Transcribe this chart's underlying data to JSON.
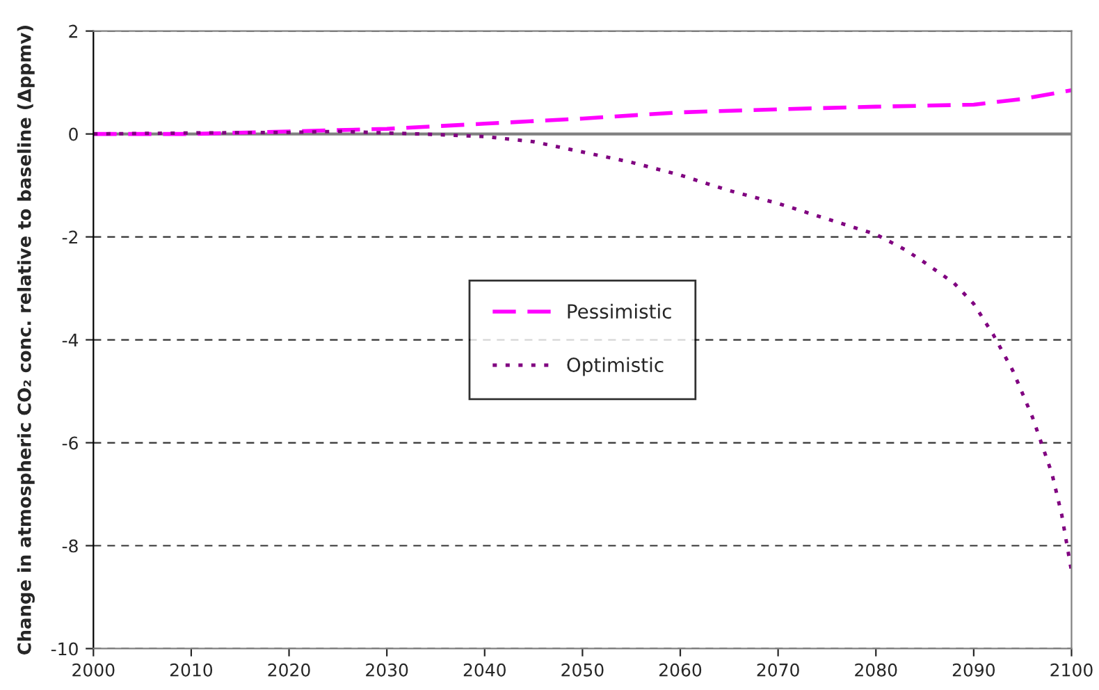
{
  "chart_data": {
    "type": "line",
    "ylabel": "Change in atmospheric CO₂ conc. relative to baseline (Δppmv)",
    "xlim": [
      2000,
      2100
    ],
    "xticks": [
      2000,
      2010,
      2020,
      2030,
      2040,
      2050,
      2060,
      2070,
      2080,
      2090,
      2100
    ],
    "ylim": [
      -10,
      2
    ],
    "yticks": [
      -10,
      -8,
      -6,
      -4,
      -2,
      0,
      2
    ],
    "grid": "y",
    "legend": "center",
    "ref_lines": [
      {
        "axis": "y",
        "value": 0,
        "color": "#808080",
        "line_style": "solid"
      }
    ],
    "series": [
      {
        "name": "Pessimistic",
        "color": "#ff00ff",
        "line_style": "dashed",
        "x": [
          2000,
          2010,
          2020,
          2030,
          2040,
          2050,
          2060,
          2070,
          2080,
          2085,
          2090,
          2095,
          2100
        ],
        "values": [
          0,
          0.0,
          0.05,
          0.1,
          0.2,
          0.3,
          0.42,
          0.48,
          0.53,
          0.55,
          0.57,
          0.68,
          0.85
        ]
      },
      {
        "name": "Optimistic",
        "color": "#800080",
        "line_style": "dotted",
        "x": [
          2000,
          2010,
          2020,
          2025,
          2030,
          2035,
          2040,
          2045,
          2050,
          2055,
          2060,
          2065,
          2070,
          2075,
          2080,
          2083,
          2085,
          2088,
          2090,
          2092,
          2094,
          2096,
          2098,
          2099,
          2100
        ],
        "values": [
          0,
          0.02,
          0.03,
          0.05,
          0.02,
          -0.01,
          -0.05,
          -0.15,
          -0.35,
          -0.55,
          -0.8,
          -1.1,
          -1.35,
          -1.65,
          -1.95,
          -2.25,
          -2.5,
          -2.9,
          -3.3,
          -3.9,
          -4.6,
          -5.5,
          -6.6,
          -7.4,
          -8.5
        ]
      }
    ]
  }
}
